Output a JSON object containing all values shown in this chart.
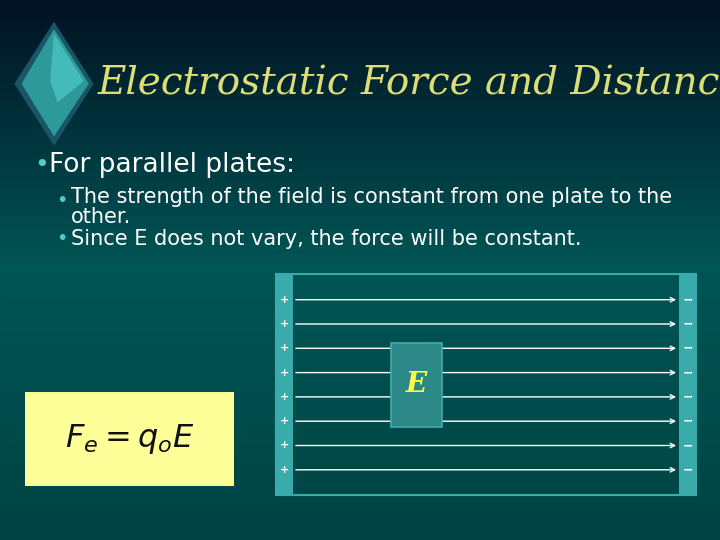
{
  "title": "Electrostatic Force and Distance",
  "bg_color": "#005555",
  "title_color": "#DDDD77",
  "title_fontsize": 28,
  "bullet1": "For parallel plates:",
  "bullet1_color": "#FFFFFF",
  "bullet1_fontsize": 19,
  "subbullet1a": "The strength of the field is constant from one plate to the",
  "subbullet1b": "other.",
  "subbullet2": "Since E does not vary, the force will be constant.",
  "subbullet_color": "#FFFFFF",
  "subbullet_fontsize": 15,
  "subbullet_bullet_color": "#55CCCC",
  "plate_color": "#3AABAB",
  "n_field_lines": 8,
  "E_box_color": "#2D8888",
  "E_text_color": "#FFFF44",
  "formula_box_color": "#FFFF99",
  "diamond_outer_color": "#2A7788",
  "diamond_mid_color": "#3AABAB",
  "diamond_inner_color": "#55CCCC"
}
